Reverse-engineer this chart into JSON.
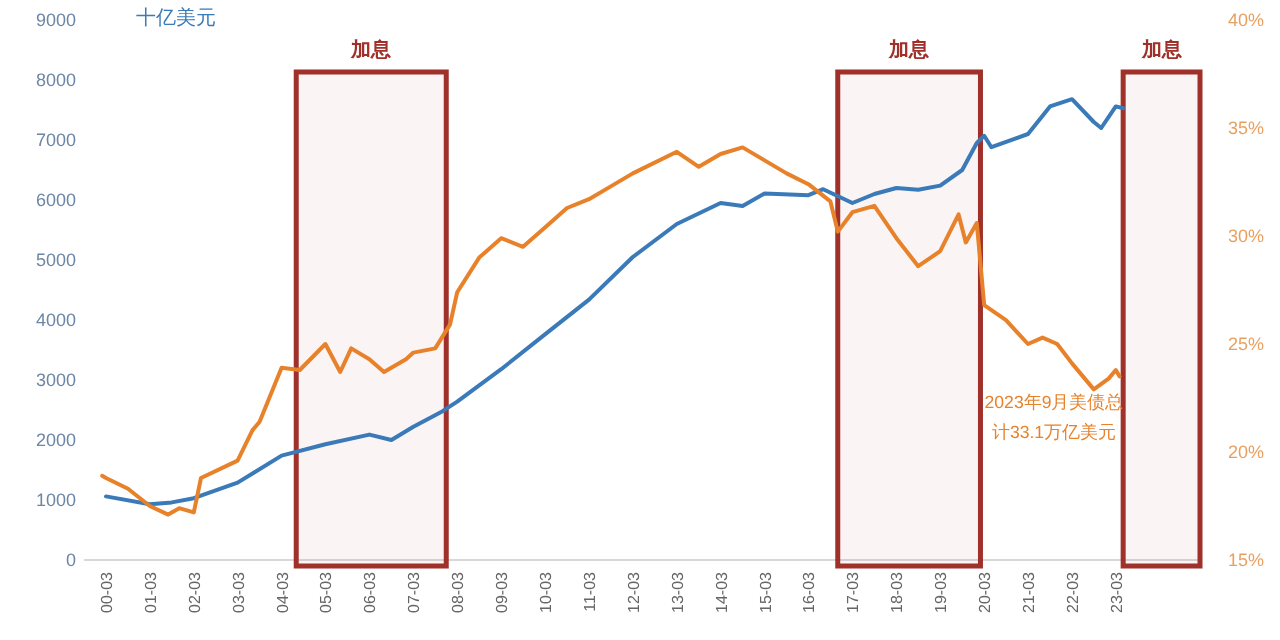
{
  "chart_data": {
    "type": "line",
    "ylabel": "十亿美元",
    "xlim": [
      "1999-09",
      "2025-02"
    ],
    "xticks": [
      {
        "value": "2000-03",
        "label": "00-03"
      },
      {
        "value": "2001-03",
        "label": "01-03"
      },
      {
        "value": "2002-03",
        "label": "02-03"
      },
      {
        "value": "2003-03",
        "label": "03-03"
      },
      {
        "value": "2004-03",
        "label": "04-03"
      },
      {
        "value": "2005-03",
        "label": "05-03"
      },
      {
        "value": "2006-03",
        "label": "06-03"
      },
      {
        "value": "2007-03",
        "label": "07-03"
      },
      {
        "value": "2008-03",
        "label": "08-03"
      },
      {
        "value": "2009-03",
        "label": "09-03"
      },
      {
        "value": "2010-03",
        "label": "10-03"
      },
      {
        "value": "2011-03",
        "label": "11-03"
      },
      {
        "value": "2012-03",
        "label": "12-03"
      },
      {
        "value": "2013-03",
        "label": "13-03"
      },
      {
        "value": "2014-03",
        "label": "14-03"
      },
      {
        "value": "2015-03",
        "label": "15-03"
      },
      {
        "value": "2016-03",
        "label": "16-03"
      },
      {
        "value": "2017-03",
        "label": "17-03"
      },
      {
        "value": "2018-03",
        "label": "18-03"
      },
      {
        "value": "2019-03",
        "label": "19-03"
      },
      {
        "value": "2020-03",
        "label": "20-03"
      },
      {
        "value": "2021-03",
        "label": "21-03"
      },
      {
        "value": "2022-03",
        "label": "22-03"
      },
      {
        "value": "2023-03",
        "label": "23-03"
      }
    ],
    "ylim": [
      0,
      9000
    ],
    "yticks": [
      0,
      1000,
      2000,
      3000,
      4000,
      5000,
      6000,
      7000,
      8000,
      9000
    ],
    "y2lim": [
      15,
      40
    ],
    "y2ticks": [
      {
        "value": 15,
        "label": "15%"
      },
      {
        "value": 20,
        "label": "20%"
      },
      {
        "value": 25,
        "label": "25%"
      },
      {
        "value": 30,
        "label": "30%"
      },
      {
        "value": 35,
        "label": "35%"
      },
      {
        "value": 40,
        "label": "40%"
      }
    ],
    "grid": false,
    "marker": "none",
    "line_style": "solid",
    "series": [
      {
        "color": "#3a7ab8",
        "x": [
          "2000-03",
          "2001-03",
          "2001-09",
          "2002-03",
          "2003-03",
          "2004-03",
          "2005-03",
          "2006-03",
          "2006-09",
          "2007-03",
          "2007-11",
          "2008-03",
          "2009-03",
          "2010-03",
          "2011-03",
          "2012-03",
          "2013-03",
          "2014-03",
          "2014-09",
          "2015-03",
          "2016-03",
          "2016-07",
          "2017-03",
          "2017-09",
          "2018-03",
          "2018-09",
          "2019-03",
          "2019-09",
          "2020-01",
          "2020-03",
          "2020-05",
          "2021-03",
          "2021-09",
          "2022-03",
          "2022-09",
          "2022-11",
          "2023-03",
          "2023-05"
        ],
        "values": [
          1060,
          930,
          960,
          1030,
          1290,
          1740,
          1930,
          2090,
          2000,
          2220,
          2480,
          2640,
          3180,
          3760,
          4340,
          5050,
          5600,
          5950,
          5900,
          6110,
          6080,
          6180,
          5950,
          6100,
          6200,
          6170,
          6240,
          6500,
          6950,
          7070,
          6880,
          7100,
          7560,
          7680,
          7300,
          7200,
          7560,
          7530
        ]
      },
      {
        "color": "#e8822a",
        "axis": "y2",
        "x": [
          "2000-02",
          "2000-03",
          "2000-09",
          "2001-03",
          "2001-08",
          "2001-11",
          "2002-03",
          "2002-05",
          "2003-03",
          "2003-07",
          "2003-09",
          "2004-03",
          "2004-08",
          "2005-03",
          "2005-07",
          "2005-10",
          "2006-03",
          "2006-07",
          "2007-01",
          "2007-03",
          "2007-09",
          "2008-01",
          "2008-03",
          "2008-09",
          "2009-03",
          "2009-09",
          "2010-03",
          "2010-09",
          "2011-03",
          "2011-09",
          "2012-03",
          "2013-03",
          "2013-09",
          "2014-03",
          "2014-09",
          "2015-03",
          "2015-09",
          "2016-03",
          "2016-09",
          "2016-11",
          "2017-03",
          "2017-09",
          "2018-03",
          "2018-09",
          "2019-03",
          "2019-08",
          "2019-10",
          "2020-01",
          "2020-03",
          "2020-09",
          "2021-03",
          "2021-07",
          "2021-11",
          "2022-03",
          "2022-09",
          "2023-01",
          "2023-03",
          "2023-04"
        ],
        "values": [
          18.9,
          18.8,
          18.3,
          17.5,
          17.1,
          17.4,
          17.2,
          18.8,
          19.6,
          21,
          21.4,
          23.9,
          23.8,
          25,
          23.7,
          24.8,
          24.3,
          23.7,
          24.3,
          24.6,
          24.8,
          25.9,
          27.4,
          29,
          29.9,
          29.5,
          30.4,
          31.3,
          31.7,
          32.3,
          32.9,
          33.9,
          33.2,
          33.8,
          34.1,
          33.5,
          32.9,
          32.4,
          31.6,
          30.2,
          31.1,
          31.4,
          29.9,
          28.6,
          29.3,
          31,
          29.7,
          30.6,
          26.8,
          26.1,
          25,
          25.3,
          25,
          24.1,
          22.9,
          23.4,
          23.8,
          23.5
        ]
      }
    ],
    "bands": [
      {
        "axis": "x",
        "from": "2004-07",
        "to": "2007-12",
        "label": "加息",
        "color": "#a0302a"
      },
      {
        "axis": "x",
        "from": "2016-11",
        "to": "2020-02",
        "label": "加息",
        "color": "#a0302a"
      },
      {
        "axis": "x",
        "from": "2023-05",
        "to": "2025-02",
        "label": "加息",
        "color": "#a0302a"
      }
    ],
    "annotations": [
      "2023年9月美债总计33.1万亿美元"
    ]
  }
}
